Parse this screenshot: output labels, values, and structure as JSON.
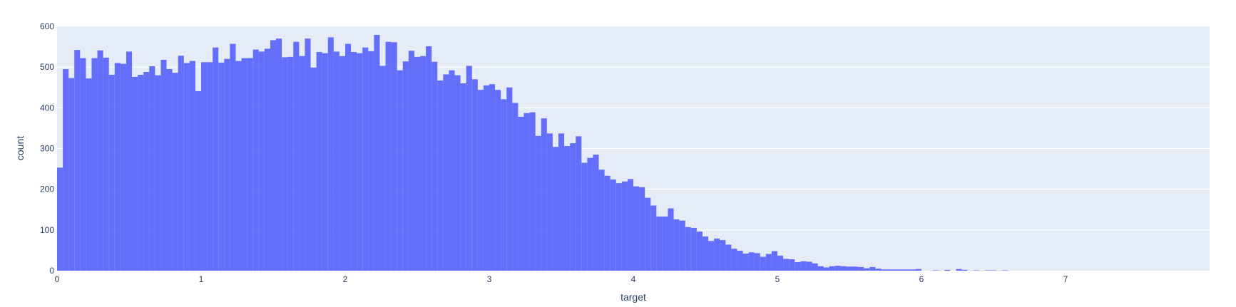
{
  "chart_data": {
    "type": "bar",
    "title": "",
    "xlabel": "target",
    "ylabel": "count",
    "bin_width": 0.04,
    "x_start": 0,
    "xlim": [
      0,
      8
    ],
    "ylim": [
      0,
      600
    ],
    "x_ticks": [
      "0",
      "1",
      "2",
      "3",
      "4",
      "5",
      "6",
      "7"
    ],
    "y_ticks": [
      "0",
      "100",
      "200",
      "300",
      "400",
      "500",
      "600"
    ],
    "grid": true,
    "legend": "none",
    "colors": {
      "bar": "#636efa",
      "plot_bg": "#e5ecf6",
      "grid": "#ffffff",
      "text": "#2a3f5f"
    },
    "values": [
      253,
      495,
      473,
      542,
      522,
      472,
      522,
      541,
      523,
      481,
      510,
      508,
      538,
      476,
      481,
      488,
      502,
      480,
      518,
      495,
      486,
      528,
      510,
      515,
      441,
      512,
      512,
      548,
      511,
      520,
      557,
      515,
      522,
      522,
      543,
      538,
      545,
      566,
      570,
      524,
      525,
      562,
      527,
      570,
      499,
      537,
      534,
      573,
      538,
      527,
      557,
      537,
      534,
      548,
      539,
      579,
      503,
      562,
      561,
      492,
      514,
      540,
      525,
      527,
      551,
      513,
      467,
      482,
      492,
      480,
      460,
      503,
      470,
      444,
      455,
      458,
      444,
      421,
      450,
      412,
      378,
      387,
      389,
      331,
      374,
      337,
      304,
      337,
      306,
      313,
      330,
      265,
      277,
      285,
      248,
      233,
      224,
      215,
      219,
      225,
      207,
      205,
      179,
      160,
      133,
      133,
      153,
      126,
      123,
      107,
      105,
      96,
      84,
      73,
      79,
      75,
      64,
      54,
      49,
      42,
      45,
      43,
      34,
      41,
      48,
      37,
      29,
      28,
      21,
      23,
      22,
      18,
      11,
      8,
      11,
      12,
      11,
      10,
      10,
      9,
      6,
      9,
      5,
      3,
      3,
      3,
      3,
      3,
      3,
      4,
      0,
      0,
      1,
      0,
      2,
      0,
      4,
      2,
      0,
      1,
      0,
      1,
      1,
      0,
      1,
      0,
      0,
      0,
      0,
      0
    ]
  }
}
